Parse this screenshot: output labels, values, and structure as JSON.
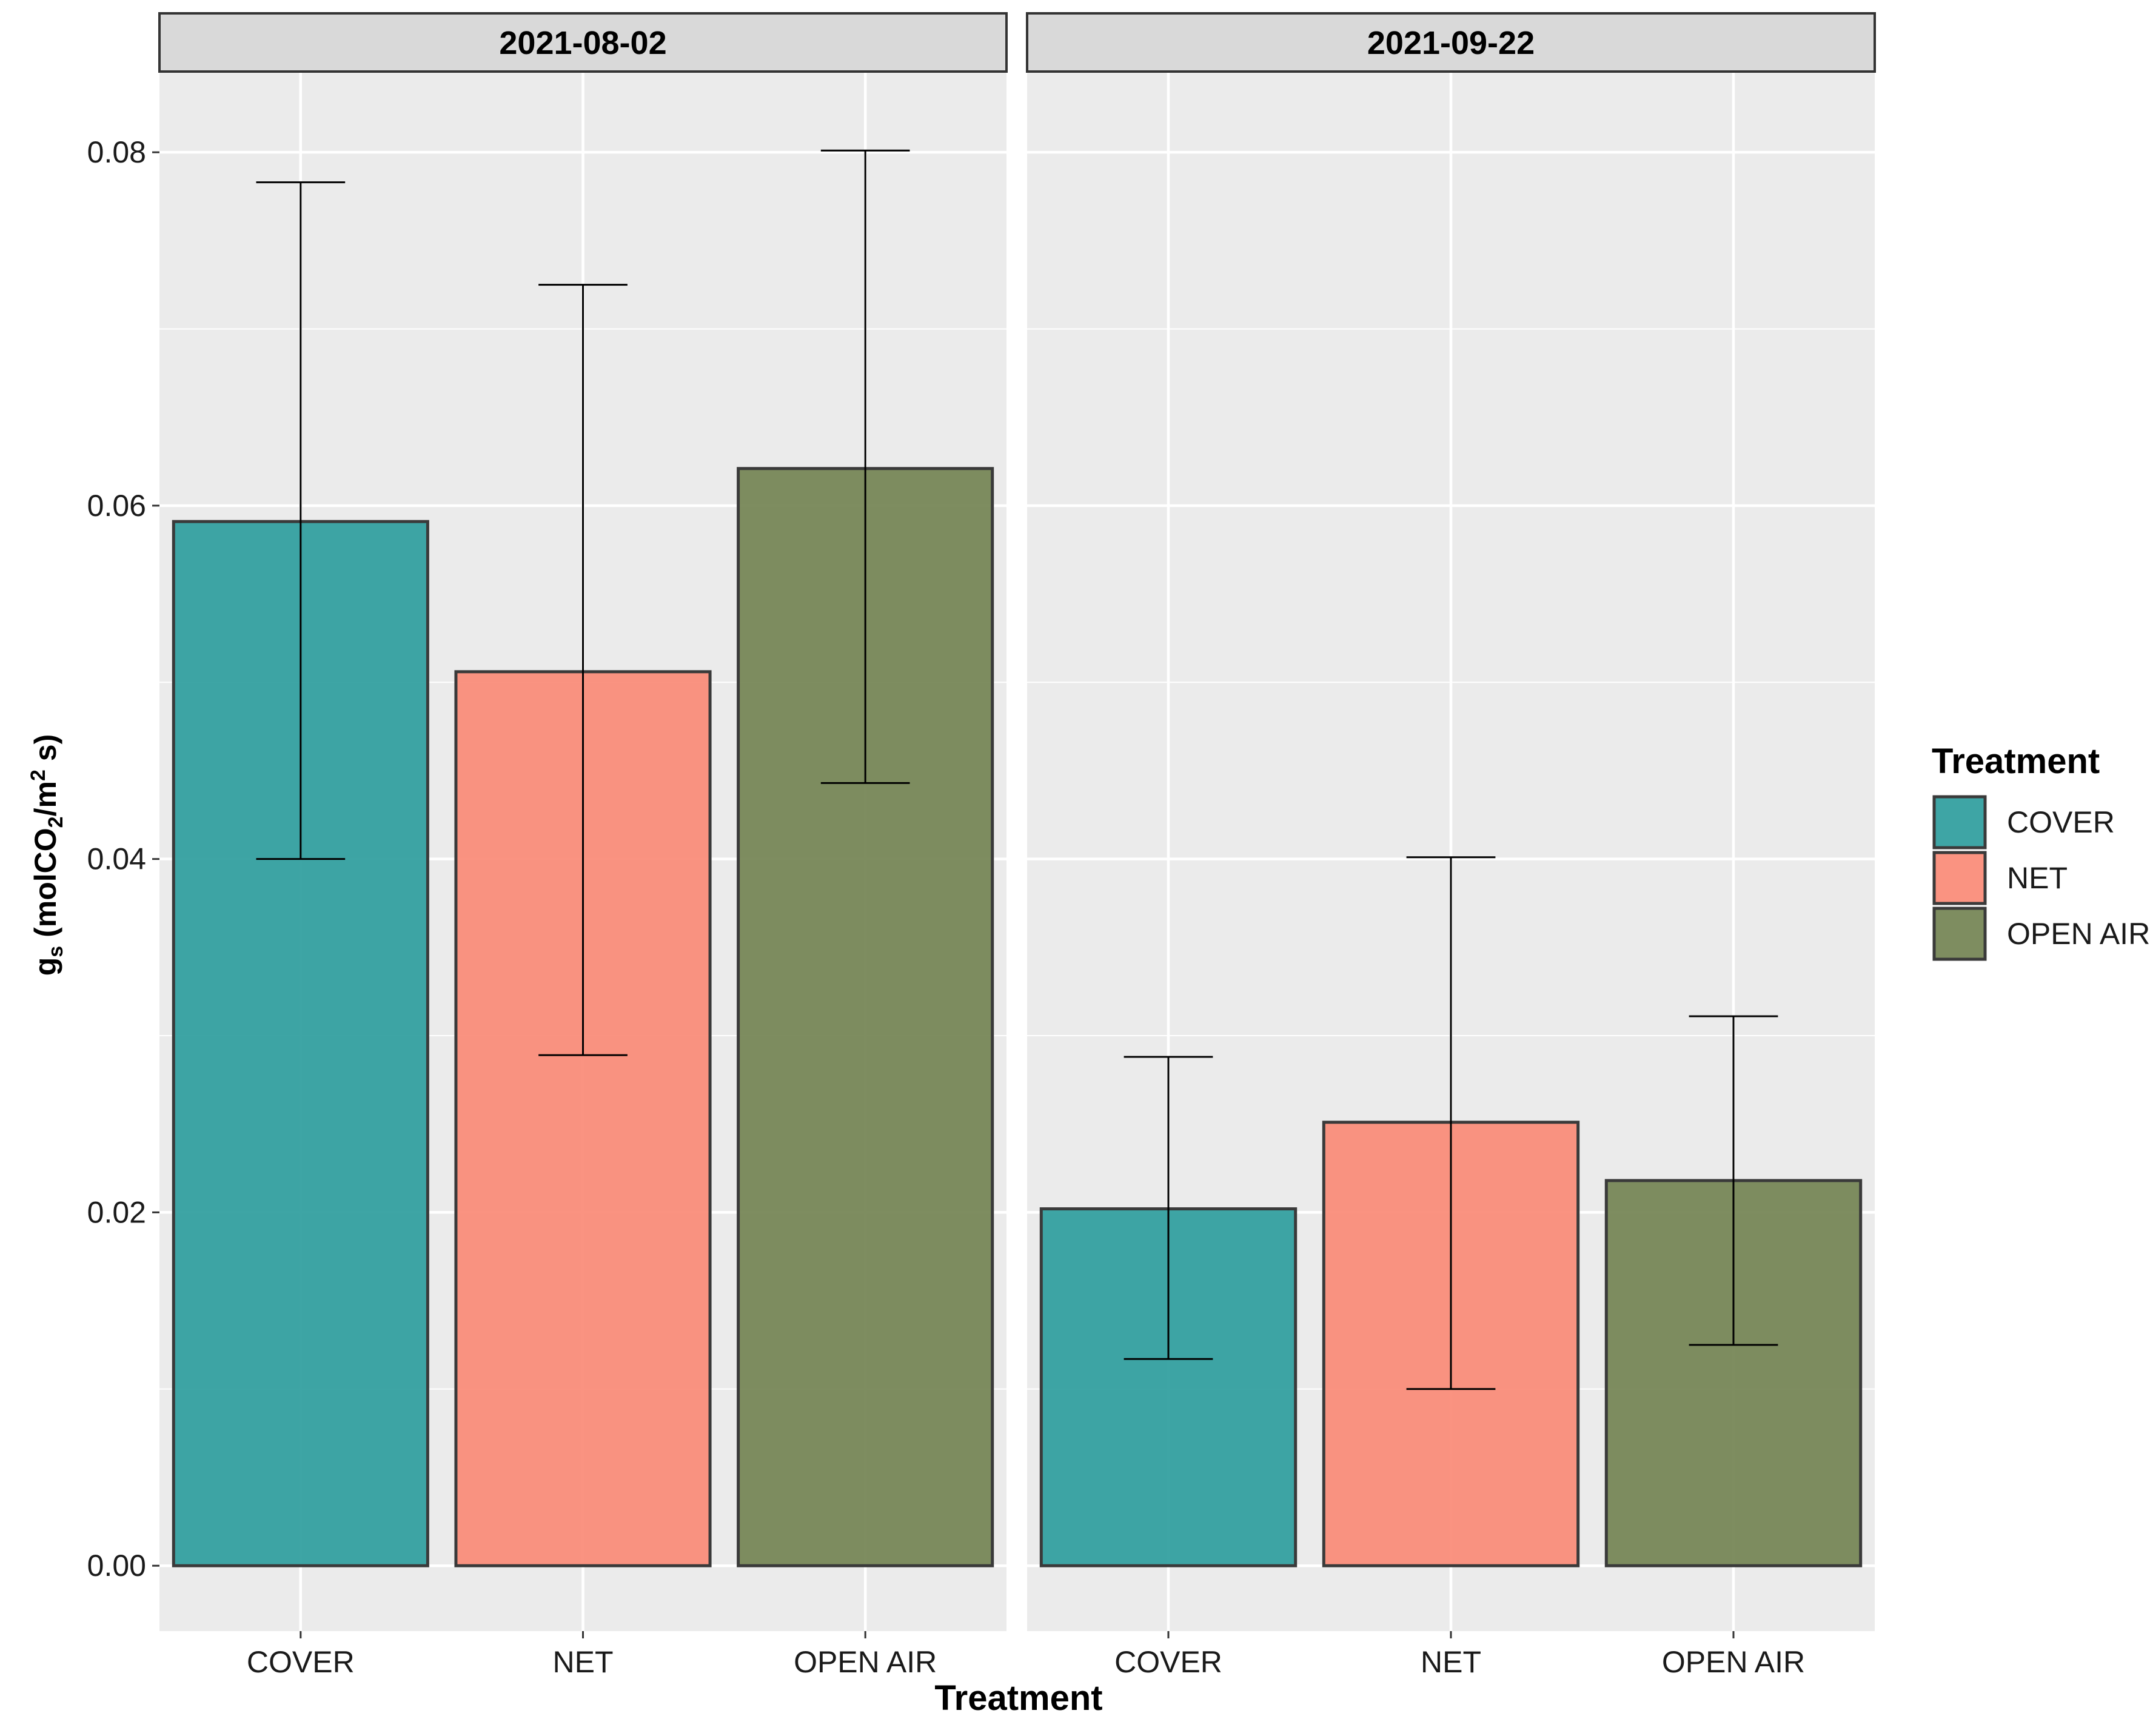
{
  "chart_data": {
    "type": "bar",
    "facets": [
      {
        "title": "2021-08-02",
        "categories": [
          "COVER",
          "NET",
          "OPEN AIR"
        ],
        "values": [
          0.0591,
          0.0506,
          0.0621
        ],
        "error_low": [
          0.04,
          0.0289,
          0.0443
        ],
        "error_high": [
          0.0783,
          0.0725,
          0.0801
        ]
      },
      {
        "title": "2021-09-22",
        "categories": [
          "COVER",
          "NET",
          "OPEN AIR"
        ],
        "values": [
          0.0202,
          0.0251,
          0.0218
        ],
        "error_low": [
          0.0117,
          0.01,
          0.0125
        ],
        "error_high": [
          0.0288,
          0.0401,
          0.0311
        ]
      }
    ],
    "xlabel": "Treatment",
    "ylabel": {
      "main": "g",
      "main_sub": "s",
      "unit_open": " (molCO",
      "unit_sub": "2",
      "unit_mid": "/m",
      "unit_sup": "2",
      "unit_close": " s)"
    },
    "ylim": [
      -0.0037,
      0.0845
    ],
    "yticks": [
      "0.00",
      "0.02",
      "0.04",
      "0.06",
      "0.08"
    ],
    "ytick_values": [
      0,
      0.02,
      0.04,
      0.06,
      0.08
    ],
    "grid": true,
    "legend": {
      "title": "Treatment",
      "position": "right",
      "items": [
        "COVER",
        "NET",
        "OPEN AIR"
      ]
    },
    "colors": {
      "COVER": "#2E9D9D",
      "NET": "#FA8A76",
      "OPEN AIR": "#738353",
      "panel_bg": "#EBEBEB",
      "grid": "#FFFFFF",
      "strip_bg": "#D9D9D9"
    }
  }
}
